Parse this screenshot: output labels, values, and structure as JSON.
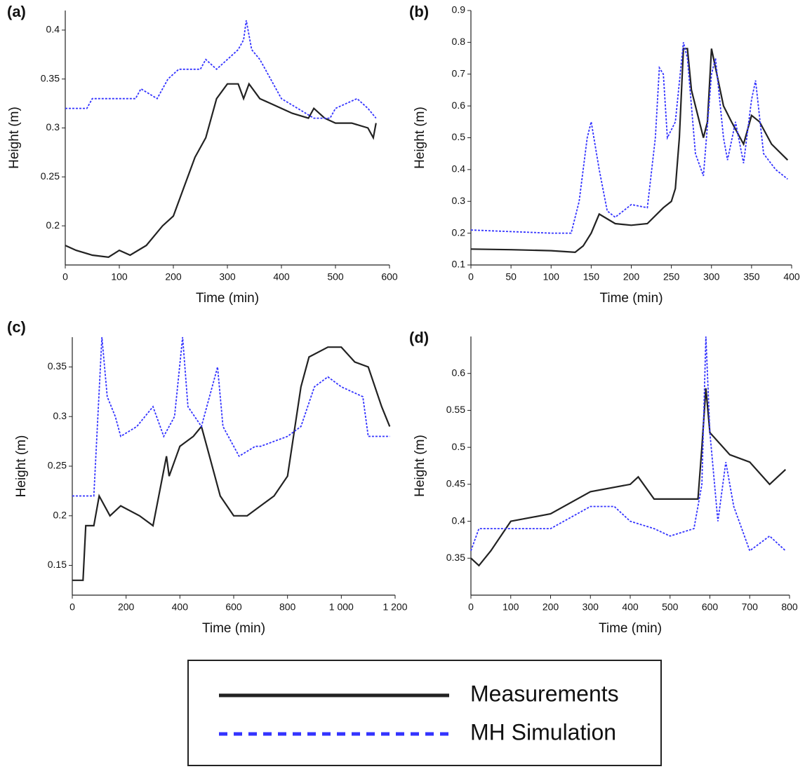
{
  "chart_data": [
    {
      "type": "line",
      "title": "(a)",
      "x_label": "Time (min)",
      "y_label": "Height (m)",
      "xlim": [
        0,
        600
      ],
      "xticks": [
        0,
        100,
        200,
        300,
        400,
        500,
        600
      ],
      "ylim": [
        0.16,
        0.42
      ],
      "yticks": [
        0.2,
        0.25,
        0.3,
        0.35,
        0.4
      ],
      "series": [
        {
          "color": "#222222",
          "style": "solid",
          "x": [
            0,
            20,
            50,
            80,
            100,
            120,
            150,
            180,
            200,
            220,
            240,
            260,
            280,
            300,
            320,
            330,
            340,
            360,
            380,
            400,
            420,
            450,
            460,
            480,
            500,
            530,
            560,
            570,
            575
          ],
          "values": [
            0.18,
            0.175,
            0.17,
            0.168,
            0.175,
            0.17,
            0.18,
            0.2,
            0.21,
            0.24,
            0.27,
            0.29,
            0.33,
            0.345,
            0.345,
            0.33,
            0.345,
            0.33,
            0.325,
            0.32,
            0.315,
            0.31,
            0.32,
            0.31,
            0.305,
            0.305,
            0.3,
            0.29,
            0.305
          ]
        },
        {
          "color": "#3333ff",
          "style": "dashed",
          "x": [
            0,
            40,
            50,
            100,
            130,
            140,
            170,
            190,
            210,
            250,
            260,
            280,
            300,
            320,
            330,
            335,
            345,
            360,
            380,
            400,
            430,
            460,
            490,
            500,
            540,
            560,
            575
          ],
          "values": [
            0.32,
            0.32,
            0.33,
            0.33,
            0.33,
            0.34,
            0.33,
            0.35,
            0.36,
            0.36,
            0.37,
            0.36,
            0.37,
            0.38,
            0.39,
            0.41,
            0.38,
            0.37,
            0.35,
            0.33,
            0.32,
            0.31,
            0.31,
            0.32,
            0.33,
            0.32,
            0.31
          ]
        }
      ]
    },
    {
      "type": "line",
      "title": "(b)",
      "x_label": "Time (min)",
      "y_label": "Height (m)",
      "xlim": [
        0,
        400
      ],
      "xticks": [
        0,
        50,
        100,
        150,
        200,
        250,
        300,
        350,
        400
      ],
      "ylim": [
        0.1,
        0.9
      ],
      "yticks": [
        0.1,
        0.2,
        0.3,
        0.4,
        0.5,
        0.6,
        0.7,
        0.8,
        0.9
      ],
      "series": [
        {
          "color": "#222222",
          "style": "solid",
          "x": [
            0,
            50,
            100,
            130,
            140,
            150,
            160,
            180,
            200,
            220,
            240,
            250,
            255,
            260,
            265,
            270,
            275,
            285,
            290,
            295,
            300,
            305,
            315,
            325,
            340,
            350,
            360,
            375,
            395
          ],
          "values": [
            0.15,
            0.148,
            0.145,
            0.14,
            0.16,
            0.2,
            0.26,
            0.23,
            0.225,
            0.23,
            0.28,
            0.3,
            0.34,
            0.5,
            0.78,
            0.78,
            0.65,
            0.55,
            0.5,
            0.55,
            0.78,
            0.72,
            0.6,
            0.55,
            0.48,
            0.57,
            0.55,
            0.48,
            0.43
          ]
        },
        {
          "color": "#3333ff",
          "style": "dashed",
          "x": [
            0,
            50,
            100,
            125,
            135,
            145,
            150,
            160,
            170,
            180,
            190,
            200,
            220,
            230,
            235,
            240,
            245,
            255,
            265,
            270,
            280,
            290,
            300,
            305,
            315,
            320,
            330,
            340,
            350,
            355,
            365,
            380,
            395
          ],
          "values": [
            0.21,
            0.205,
            0.2,
            0.2,
            0.3,
            0.5,
            0.55,
            0.4,
            0.27,
            0.25,
            0.27,
            0.29,
            0.28,
            0.5,
            0.72,
            0.7,
            0.5,
            0.55,
            0.8,
            0.75,
            0.45,
            0.38,
            0.7,
            0.75,
            0.5,
            0.43,
            0.55,
            0.42,
            0.62,
            0.68,
            0.45,
            0.4,
            0.37
          ]
        }
      ]
    },
    {
      "type": "line",
      "title": "(c)",
      "x_label": "Time (min)",
      "y_label": "Height (m)",
      "xlim": [
        0,
        1200
      ],
      "xticks": [
        0,
        200,
        400,
        600,
        800,
        {
          "value": 1000,
          "label": "1 000"
        },
        {
          "value": 1200,
          "label": "1 200"
        }
      ],
      "ylim": [
        0.12,
        0.38
      ],
      "yticks": [
        0.15,
        0.2,
        0.25,
        0.3,
        0.35
      ],
      "series": [
        {
          "color": "#222222",
          "style": "solid",
          "x": [
            0,
            40,
            50,
            80,
            100,
            140,
            180,
            250,
            300,
            350,
            360,
            400,
            450,
            480,
            500,
            550,
            600,
            650,
            700,
            750,
            800,
            850,
            880,
            950,
            1000,
            1050,
            1100,
            1150,
            1180
          ],
          "values": [
            0.135,
            0.135,
            0.19,
            0.19,
            0.22,
            0.2,
            0.21,
            0.2,
            0.19,
            0.26,
            0.24,
            0.27,
            0.28,
            0.29,
            0.27,
            0.22,
            0.2,
            0.2,
            0.21,
            0.22,
            0.24,
            0.33,
            0.36,
            0.37,
            0.37,
            0.355,
            0.35,
            0.31,
            0.29
          ]
        },
        {
          "color": "#3333ff",
          "style": "dashed",
          "x": [
            0,
            80,
            110,
            130,
            160,
            180,
            240,
            300,
            340,
            380,
            410,
            430,
            480,
            540,
            560,
            600,
            620,
            680,
            700,
            800,
            850,
            900,
            950,
            1000,
            1080,
            1100,
            1180
          ],
          "values": [
            0.22,
            0.22,
            0.38,
            0.32,
            0.3,
            0.28,
            0.29,
            0.31,
            0.28,
            0.3,
            0.38,
            0.31,
            0.29,
            0.35,
            0.29,
            0.27,
            0.26,
            0.27,
            0.27,
            0.28,
            0.29,
            0.33,
            0.34,
            0.33,
            0.32,
            0.28,
            0.28
          ]
        }
      ]
    },
    {
      "type": "line",
      "title": "(d)",
      "x_label": "Time (min)",
      "y_label": "Height (m)",
      "xlim": [
        0,
        800
      ],
      "xticks": [
        0,
        100,
        200,
        300,
        400,
        500,
        600,
        700,
        800
      ],
      "ylim": [
        0.3,
        0.65
      ],
      "yticks": [
        0.35,
        0.4,
        0.45,
        0.5,
        0.55,
        0.6
      ],
      "series": [
        {
          "color": "#222222",
          "style": "solid",
          "x": [
            0,
            20,
            50,
            100,
            200,
            300,
            400,
            420,
            460,
            520,
            570,
            580,
            590,
            600,
            650,
            700,
            750,
            790
          ],
          "values": [
            0.35,
            0.34,
            0.36,
            0.4,
            0.41,
            0.44,
            0.45,
            0.46,
            0.43,
            0.43,
            0.43,
            0.5,
            0.58,
            0.52,
            0.49,
            0.48,
            0.45,
            0.47
          ]
        },
        {
          "color": "#3333ff",
          "style": "dashed",
          "x": [
            0,
            20,
            80,
            100,
            200,
            300,
            360,
            400,
            460,
            500,
            560,
            580,
            590,
            600,
            620,
            640,
            660,
            700,
            750,
            790
          ],
          "values": [
            0.36,
            0.39,
            0.39,
            0.39,
            0.39,
            0.42,
            0.42,
            0.4,
            0.39,
            0.38,
            0.39,
            0.45,
            0.65,
            0.52,
            0.4,
            0.48,
            0.42,
            0.36,
            0.38,
            0.36
          ]
        }
      ]
    }
  ],
  "legend": [
    {
      "name": "Measurements",
      "color": "#222222",
      "style": "solid"
    },
    {
      "name": "MH Simulation",
      "color": "#3333ff",
      "style": "dashed"
    }
  ]
}
